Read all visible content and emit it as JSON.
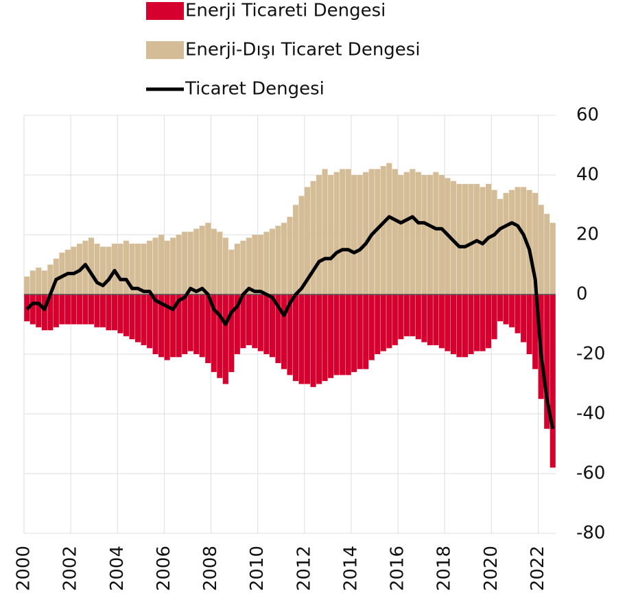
{
  "chart_data": {
    "type": "bar",
    "x": [
      2000.125,
      2000.375,
      2000.625,
      2000.875,
      2001.125,
      2001.375,
      2001.625,
      2001.875,
      2002.125,
      2002.375,
      2002.625,
      2002.875,
      2003.125,
      2003.375,
      2003.625,
      2003.875,
      2004.125,
      2004.375,
      2004.625,
      2004.875,
      2005.125,
      2005.375,
      2005.625,
      2005.875,
      2006.125,
      2006.375,
      2006.625,
      2006.875,
      2007.125,
      2007.375,
      2007.625,
      2007.875,
      2008.125,
      2008.375,
      2008.625,
      2008.875,
      2009.125,
      2009.375,
      2009.625,
      2009.875,
      2010.125,
      2010.375,
      2010.625,
      2010.875,
      2011.125,
      2011.375,
      2011.625,
      2011.875,
      2012.125,
      2012.375,
      2012.625,
      2012.875,
      2013.125,
      2013.375,
      2013.625,
      2013.875,
      2014.125,
      2014.375,
      2014.625,
      2014.875,
      2015.125,
      2015.375,
      2015.625,
      2015.875,
      2016.125,
      2016.375,
      2016.625,
      2016.875,
      2017.125,
      2017.375,
      2017.625,
      2017.875,
      2018.125,
      2018.375,
      2018.625,
      2018.875,
      2019.125,
      2019.375,
      2019.625,
      2019.875,
      2020.125,
      2020.375,
      2020.625,
      2020.875,
      2021.125,
      2021.375,
      2021.625,
      2021.875,
      2022.125,
      2022.375,
      2022.625
    ],
    "series": [
      {
        "name": "Enerji Ticareti Dengesi",
        "color": "#d6002e",
        "values": [
          -9,
          -10,
          -11,
          -12,
          -12,
          -11,
          -10,
          -10,
          -10,
          -10,
          -10,
          -10,
          -11,
          -11,
          -12,
          -12,
          -13,
          -14,
          -15,
          -16,
          -17,
          -18,
          -20,
          -21,
          -22,
          -21,
          -21,
          -20,
          -19,
          -20,
          -21,
          -23,
          -26,
          -28,
          -30,
          -26,
          -20,
          -18,
          -17,
          -18,
          -19,
          -20,
          -21,
          -23,
          -25,
          -27,
          -29,
          -30,
          -30,
          -31,
          -30,
          -29,
          -28,
          -27,
          -27,
          -27,
          -26,
          -25,
          -25,
          -22,
          -20,
          -19,
          -18,
          -17,
          -15,
          -14,
          -14,
          -15,
          -16,
          -17,
          -17,
          -18,
          -19,
          -20,
          -21,
          -21,
          -20,
          -19,
          -19,
          -18,
          -15,
          -9,
          -10,
          -11,
          -13,
          -16,
          -20,
          -25,
          -35,
          -45,
          -58
        ]
      },
      {
        "name": "Enerji-Dışı Ticaret Dengesi",
        "color": "#d4bc96",
        "values": [
          6,
          8,
          9,
          8,
          10,
          12,
          14,
          15,
          16,
          17,
          18,
          19,
          17,
          16,
          16,
          17,
          17,
          18,
          17,
          17,
          17,
          18,
          19,
          20,
          18,
          19,
          20,
          21,
          21,
          22,
          23,
          24,
          22,
          21,
          19,
          15,
          17,
          18,
          19,
          20,
          20,
          21,
          22,
          23,
          24,
          26,
          30,
          33,
          36,
          38,
          40,
          42,
          40,
          41,
          42,
          42,
          40,
          40,
          41,
          42,
          42,
          43,
          44,
          42,
          40,
          41,
          42,
          41,
          40,
          40,
          41,
          40,
          39,
          38,
          37,
          37,
          37,
          37,
          36,
          37,
          35,
          32,
          34,
          35,
          36,
          36,
          35,
          34,
          30,
          27,
          24
        ]
      },
      {
        "name": "Ticaret Dengesi",
        "color": "#000000",
        "type": "line",
        "values": [
          -5,
          -3,
          -3,
          -5,
          0,
          5,
          6,
          7,
          7,
          8,
          10,
          7,
          4,
          3,
          5,
          8,
          5,
          5,
          2,
          2,
          1,
          1,
          -2,
          -3,
          -4,
          -5,
          -2,
          -1,
          2,
          1,
          2,
          0,
          -5,
          -7,
          -10,
          -6,
          -4,
          0,
          2,
          1,
          1,
          0,
          -1,
          -4,
          -7,
          -3,
          0,
          2,
          5,
          8,
          11,
          12,
          12,
          14,
          15,
          15,
          14,
          15,
          17,
          20,
          22,
          24,
          26,
          25,
          24,
          25,
          26,
          24,
          24,
          23,
          22,
          22,
          20,
          18,
          16,
          16,
          17,
          18,
          17,
          19,
          20,
          22,
          23,
          24,
          23,
          20,
          15,
          5,
          -20,
          -35,
          -45
        ]
      }
    ],
    "xlim": [
      2000,
      2022.75
    ],
    "xticks": [
      2000,
      2002,
      2004,
      2006,
      2008,
      2010,
      2012,
      2014,
      2016,
      2018,
      2020,
      2022
    ],
    "ylim": [
      -80,
      60
    ],
    "yticks": [
      -80,
      -60,
      -40,
      -20,
      0,
      20,
      40,
      60
    ],
    "grid": true,
    "legend": "top"
  }
}
